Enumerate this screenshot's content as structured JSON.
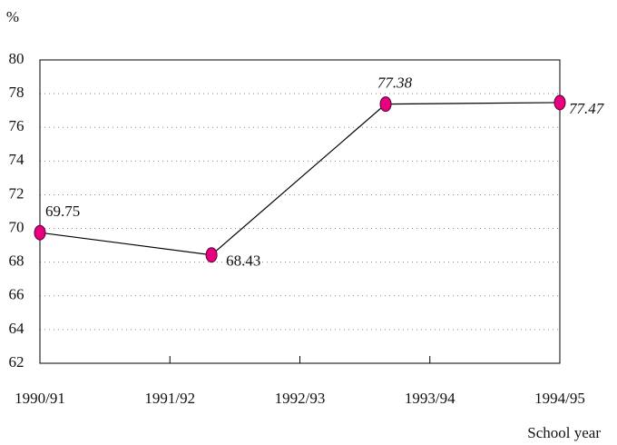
{
  "chart_data": {
    "type": "line",
    "y_label": "%",
    "x_label": "School year",
    "x": [
      0,
      1.32,
      2.66,
      4
    ],
    "series": [
      {
        "color": "#e6007e",
        "values": [
          69.75,
          68.43,
          77.38,
          77.47
        ]
      }
    ],
    "xlim": [
      0,
      4
    ],
    "xticks": [
      {
        "value": 0,
        "label": "1990/91"
      },
      {
        "value": 1,
        "label": "1991/92"
      },
      {
        "value": 2,
        "label": "1992/93"
      },
      {
        "value": 3,
        "label": "1993/94"
      },
      {
        "value": 4,
        "label": "1994/95"
      }
    ],
    "ylim": [
      62,
      80
    ],
    "yticks": [
      62,
      64,
      66,
      68,
      70,
      72,
      74,
      76,
      78,
      80
    ],
    "grid": true
  }
}
